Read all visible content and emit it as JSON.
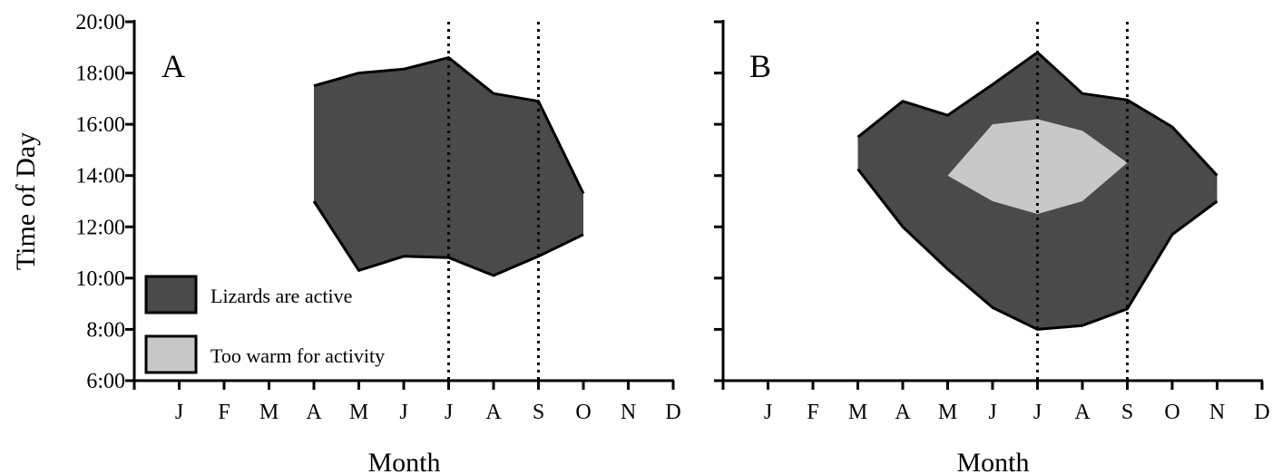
{
  "chart_data": [
    {
      "type": "area",
      "panel_label": "A",
      "ylabel": "Time of Day",
      "xlabel": "Month",
      "x_ticks": [
        "J",
        "F",
        "M",
        "A",
        "M",
        "J",
        "J",
        "A",
        "S",
        "O",
        "N",
        "D"
      ],
      "y_ticks": [
        "6:00",
        "8:00",
        "10:00",
        "12:00",
        "14:00",
        "16:00",
        "18:00",
        "20:00"
      ],
      "ylim": [
        6,
        20
      ],
      "vertical_dotted_lines_at_month": [
        7,
        9
      ],
      "series": [
        {
          "name": "Lizards are active",
          "color": "#4a4a4a",
          "x": [
            4,
            5,
            6,
            7,
            8,
            9,
            10
          ],
          "upper": [
            17.5,
            18.0,
            18.15,
            18.6,
            17.2,
            16.9,
            13.3
          ],
          "lower": [
            13.0,
            10.3,
            10.85,
            10.8,
            10.1,
            10.85,
            11.7
          ]
        }
      ],
      "legend": [
        {
          "label": "Lizards are active",
          "color": "#4a4a4a"
        },
        {
          "label": "Too warm for activity",
          "color": "#c8c8c8"
        }
      ]
    },
    {
      "type": "area",
      "panel_label": "B",
      "xlabel": "Month",
      "x_ticks": [
        "J",
        "F",
        "M",
        "A",
        "M",
        "J",
        "J",
        "A",
        "S",
        "O",
        "N",
        "D"
      ],
      "ylim": [
        6,
        20
      ],
      "vertical_dotted_lines_at_month": [
        7,
        9
      ],
      "series": [
        {
          "name": "Lizards are active",
          "color": "#4a4a4a",
          "x": [
            3,
            4,
            5,
            6,
            7,
            8,
            9,
            10,
            11
          ],
          "upper": [
            15.5,
            16.9,
            16.35,
            17.55,
            18.8,
            17.2,
            16.95,
            15.9,
            14.0
          ],
          "lower": [
            14.25,
            12.0,
            10.35,
            8.85,
            8.0,
            8.15,
            8.8,
            11.7,
            13.0
          ]
        },
        {
          "name": "Too warm for activity",
          "color": "#c8c8c8",
          "x": [
            5,
            6,
            7,
            8,
            9
          ],
          "upper": [
            14.0,
            16.0,
            16.2,
            15.75,
            14.5
          ],
          "lower": [
            14.0,
            13.0,
            12.5,
            13.0,
            14.5
          ]
        }
      ]
    }
  ]
}
